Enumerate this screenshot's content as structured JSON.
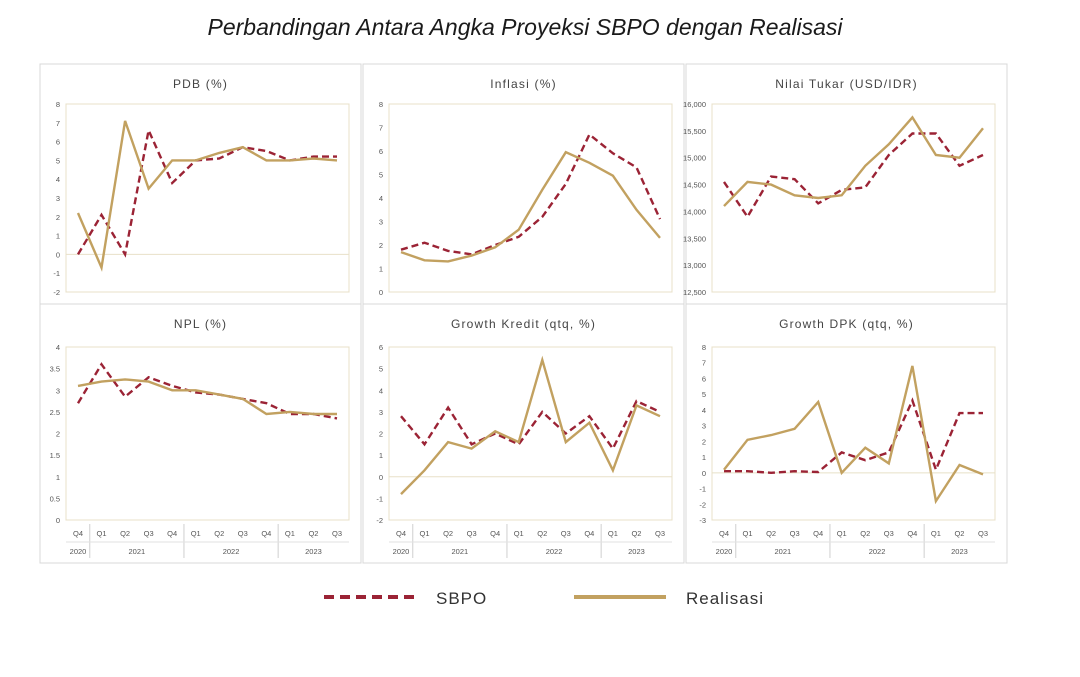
{
  "title": "Perbandingan Antara Angka Proyeksi SBPO dengan Realisasi",
  "colors": {
    "sbpo": "#9b2335",
    "realisasi": "#c2a160",
    "plot_border": "#e8e0c8",
    "panel_border": "#d8d8d8"
  },
  "legend": [
    {
      "name": "SBPO",
      "style": "dashed"
    },
    {
      "name": "Realisasi",
      "style": "solid"
    }
  ],
  "chart_data": [
    {
      "type": "line",
      "title": "PDB (%)",
      "ylim": [
        -2,
        8
      ],
      "yticks": [
        "-2",
        "-1",
        "0",
        "1",
        "2",
        "3",
        "4",
        "5",
        "6",
        "7",
        "8"
      ],
      "series": [
        {
          "name": "SBPO",
          "values": [
            0,
            2.1,
            0,
            6.6,
            3.8,
            5.0,
            5.1,
            5.7,
            5.5,
            5.0,
            5.2,
            5.2
          ]
        },
        {
          "name": "Realisasi",
          "values": [
            2.2,
            -0.7,
            7.1,
            3.5,
            5.0,
            5.0,
            5.4,
            5.7,
            5.0,
            5.0,
            5.1,
            5.0
          ]
        }
      ]
    },
    {
      "type": "line",
      "title": "Inflasi (%)",
      "ylim": [
        0,
        8
      ],
      "yticks": [
        "0",
        "1",
        "2",
        "3",
        "4",
        "5",
        "6",
        "7",
        "8"
      ],
      "series": [
        {
          "name": "SBPO",
          "values": [
            1.8,
            2.1,
            1.75,
            1.6,
            2.0,
            2.35,
            3.2,
            4.6,
            6.7,
            5.9,
            5.3,
            3.1
          ]
        },
        {
          "name": "Realisasi",
          "values": [
            1.7,
            1.35,
            1.3,
            1.55,
            1.9,
            2.65,
            4.35,
            5.95,
            5.5,
            4.95,
            3.5,
            2.3
          ]
        }
      ]
    },
    {
      "type": "line",
      "title": "Nilai Tukar (USD/IDR)",
      "ylim": [
        12500,
        16000
      ],
      "yticks": [
        "12,500",
        "13,000",
        "13,500",
        "14,000",
        "14,500",
        "15,000",
        "15,500",
        "16,000"
      ],
      "series": [
        {
          "name": "SBPO",
          "values": [
            14550,
            13900,
            14650,
            14600,
            14150,
            14400,
            14450,
            15050,
            15450,
            15450,
            14850,
            15050
          ]
        },
        {
          "name": "Realisasi",
          "values": [
            14100,
            14550,
            14500,
            14300,
            14250,
            14300,
            14850,
            15250,
            15750,
            15050,
            15000,
            15550
          ]
        }
      ]
    },
    {
      "type": "line",
      "title": "NPL (%)",
      "ylim": [
        0,
        4
      ],
      "yticks": [
        "0",
        "0.5",
        "1",
        "1.5",
        "2",
        "2.5",
        "3",
        "3.5",
        "4"
      ],
      "series": [
        {
          "name": "SBPO",
          "values": [
            2.7,
            3.6,
            2.85,
            3.3,
            3.1,
            2.95,
            2.9,
            2.8,
            2.7,
            2.45,
            2.45,
            2.35
          ]
        },
        {
          "name": "Realisasi",
          "values": [
            3.1,
            3.2,
            3.25,
            3.2,
            3.0,
            3.0,
            2.9,
            2.8,
            2.45,
            2.5,
            2.45,
            2.45
          ]
        }
      ]
    },
    {
      "type": "line",
      "title": "Growth Kredit (qtq, %)",
      "ylim": [
        -2,
        6
      ],
      "yticks": [
        "-2",
        "-1",
        "0",
        "1",
        "2",
        "3",
        "4",
        "5",
        "6"
      ],
      "series": [
        {
          "name": "SBPO",
          "values": [
            2.8,
            1.5,
            3.2,
            1.5,
            2.0,
            1.5,
            3.0,
            2.0,
            2.8,
            1.3,
            3.5,
            3.0
          ]
        },
        {
          "name": "Realisasi",
          "values": [
            -0.8,
            0.3,
            1.6,
            1.3,
            2.1,
            1.6,
            5.4,
            1.6,
            2.5,
            0.3,
            3.3,
            2.8
          ]
        }
      ]
    },
    {
      "type": "line",
      "title": "Growth DPK (qtq, %)",
      "ylim": [
        -3,
        8
      ],
      "yticks": [
        "-3",
        "-2",
        "-1",
        "0",
        "1",
        "2",
        "3",
        "4",
        "5",
        "6",
        "7",
        "8"
      ],
      "series": [
        {
          "name": "SBPO",
          "values": [
            0.1,
            0.1,
            0,
            0.1,
            0.05,
            1.3,
            0.8,
            1.3,
            4.6,
            0.2,
            3.8,
            3.8
          ]
        },
        {
          "name": "Realisasi",
          "values": [
            0.2,
            2.1,
            2.4,
            2.8,
            4.5,
            0,
            1.6,
            0.6,
            6.8,
            -1.8,
            0.5,
            -0.1
          ]
        }
      ]
    }
  ],
  "x_quarters": [
    "Q4",
    "Q1",
    "Q2",
    "Q3",
    "Q4",
    "Q1",
    "Q2",
    "Q3",
    "Q4",
    "Q1",
    "Q2",
    "Q3"
  ],
  "x_years": [
    "2020",
    "2021",
    "2022",
    "2023"
  ]
}
